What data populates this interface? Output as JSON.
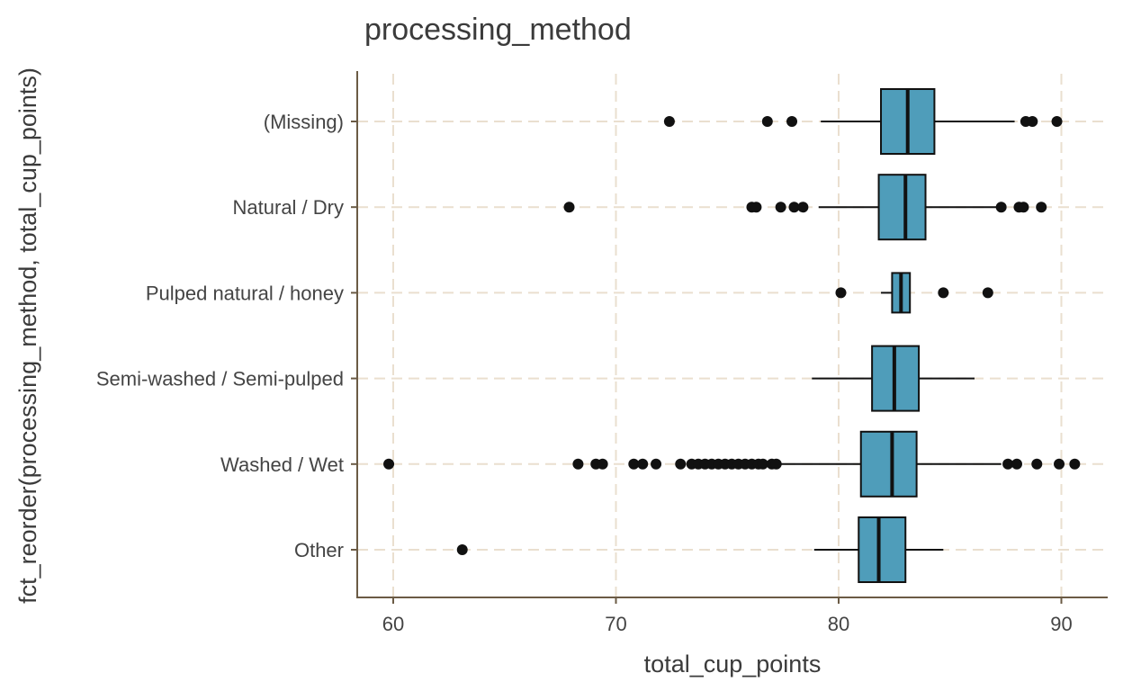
{
  "chart_data": {
    "type": "boxplot",
    "title": "processing_method",
    "xlabel": "total_cup_points",
    "ylabel": "fct_reorder(processing_method, total_cup_points)",
    "xlim": [
      58.5,
      92
    ],
    "x_ticks": [
      60,
      70,
      80,
      90
    ],
    "grid": true,
    "fill_color": "#4f9dba",
    "categories": [
      {
        "name": "(Missing)",
        "whisker_low": 79.2,
        "q1": 81.9,
        "median": 83.1,
        "q3": 84.3,
        "whisker_high": 87.9,
        "outliers": [
          72.4,
          76.8,
          77.9,
          88.4,
          88.7,
          89.8
        ]
      },
      {
        "name": "Natural / Dry",
        "whisker_low": 79.1,
        "q1": 81.8,
        "median": 83.0,
        "q3": 83.9,
        "whisker_high": 87.2,
        "outliers": [
          67.9,
          76.1,
          76.3,
          77.4,
          78.0,
          78.4,
          87.3,
          88.1,
          88.3,
          89.1
        ]
      },
      {
        "name": "Pulped natural / honey",
        "whisker_low": 81.9,
        "q1": 82.4,
        "median": 82.8,
        "q3": 83.2,
        "whisker_high": 83.2,
        "outliers": [
          80.1,
          84.7,
          86.7
        ]
      },
      {
        "name": "Semi-washed / Semi-pulped",
        "whisker_low": 78.8,
        "q1": 81.5,
        "median": 82.5,
        "q3": 83.6,
        "whisker_high": 86.1,
        "outliers": []
      },
      {
        "name": "Washed / Wet",
        "whisker_low": 77.3,
        "q1": 81.0,
        "median": 82.4,
        "q3": 83.5,
        "whisker_high": 87.3,
        "outliers": [
          59.8,
          68.3,
          69.1,
          69.4,
          70.8,
          71.2,
          71.8,
          72.9,
          73.4,
          73.7,
          74.0,
          74.3,
          74.6,
          74.9,
          75.2,
          75.5,
          75.8,
          76.1,
          76.4,
          76.6,
          77.0,
          77.2,
          87.6,
          88.0,
          88.9,
          89.9,
          90.6
        ]
      },
      {
        "name": "Other",
        "whisker_low": 78.9,
        "q1": 80.9,
        "median": 81.8,
        "q3": 83.0,
        "whisker_high": 84.7,
        "outliers": [
          63.1
        ]
      }
    ]
  }
}
